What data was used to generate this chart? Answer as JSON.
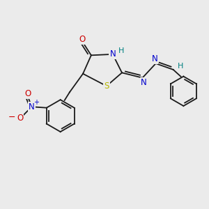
{
  "bg_color": "#ebebeb",
  "bond_color": "#1a1a1a",
  "bond_width": 1.3,
  "figsize": [
    3.0,
    3.0
  ],
  "dpi": 100,
  "atoms": {
    "S": {
      "color": "#b8b800"
    },
    "N": {
      "color": "#0000cc"
    },
    "O": {
      "color": "#cc0000"
    },
    "H": {
      "color": "#008080"
    },
    "Np": {
      "color": "#cc0000"
    },
    "Om": {
      "color": "#cc0000"
    }
  }
}
